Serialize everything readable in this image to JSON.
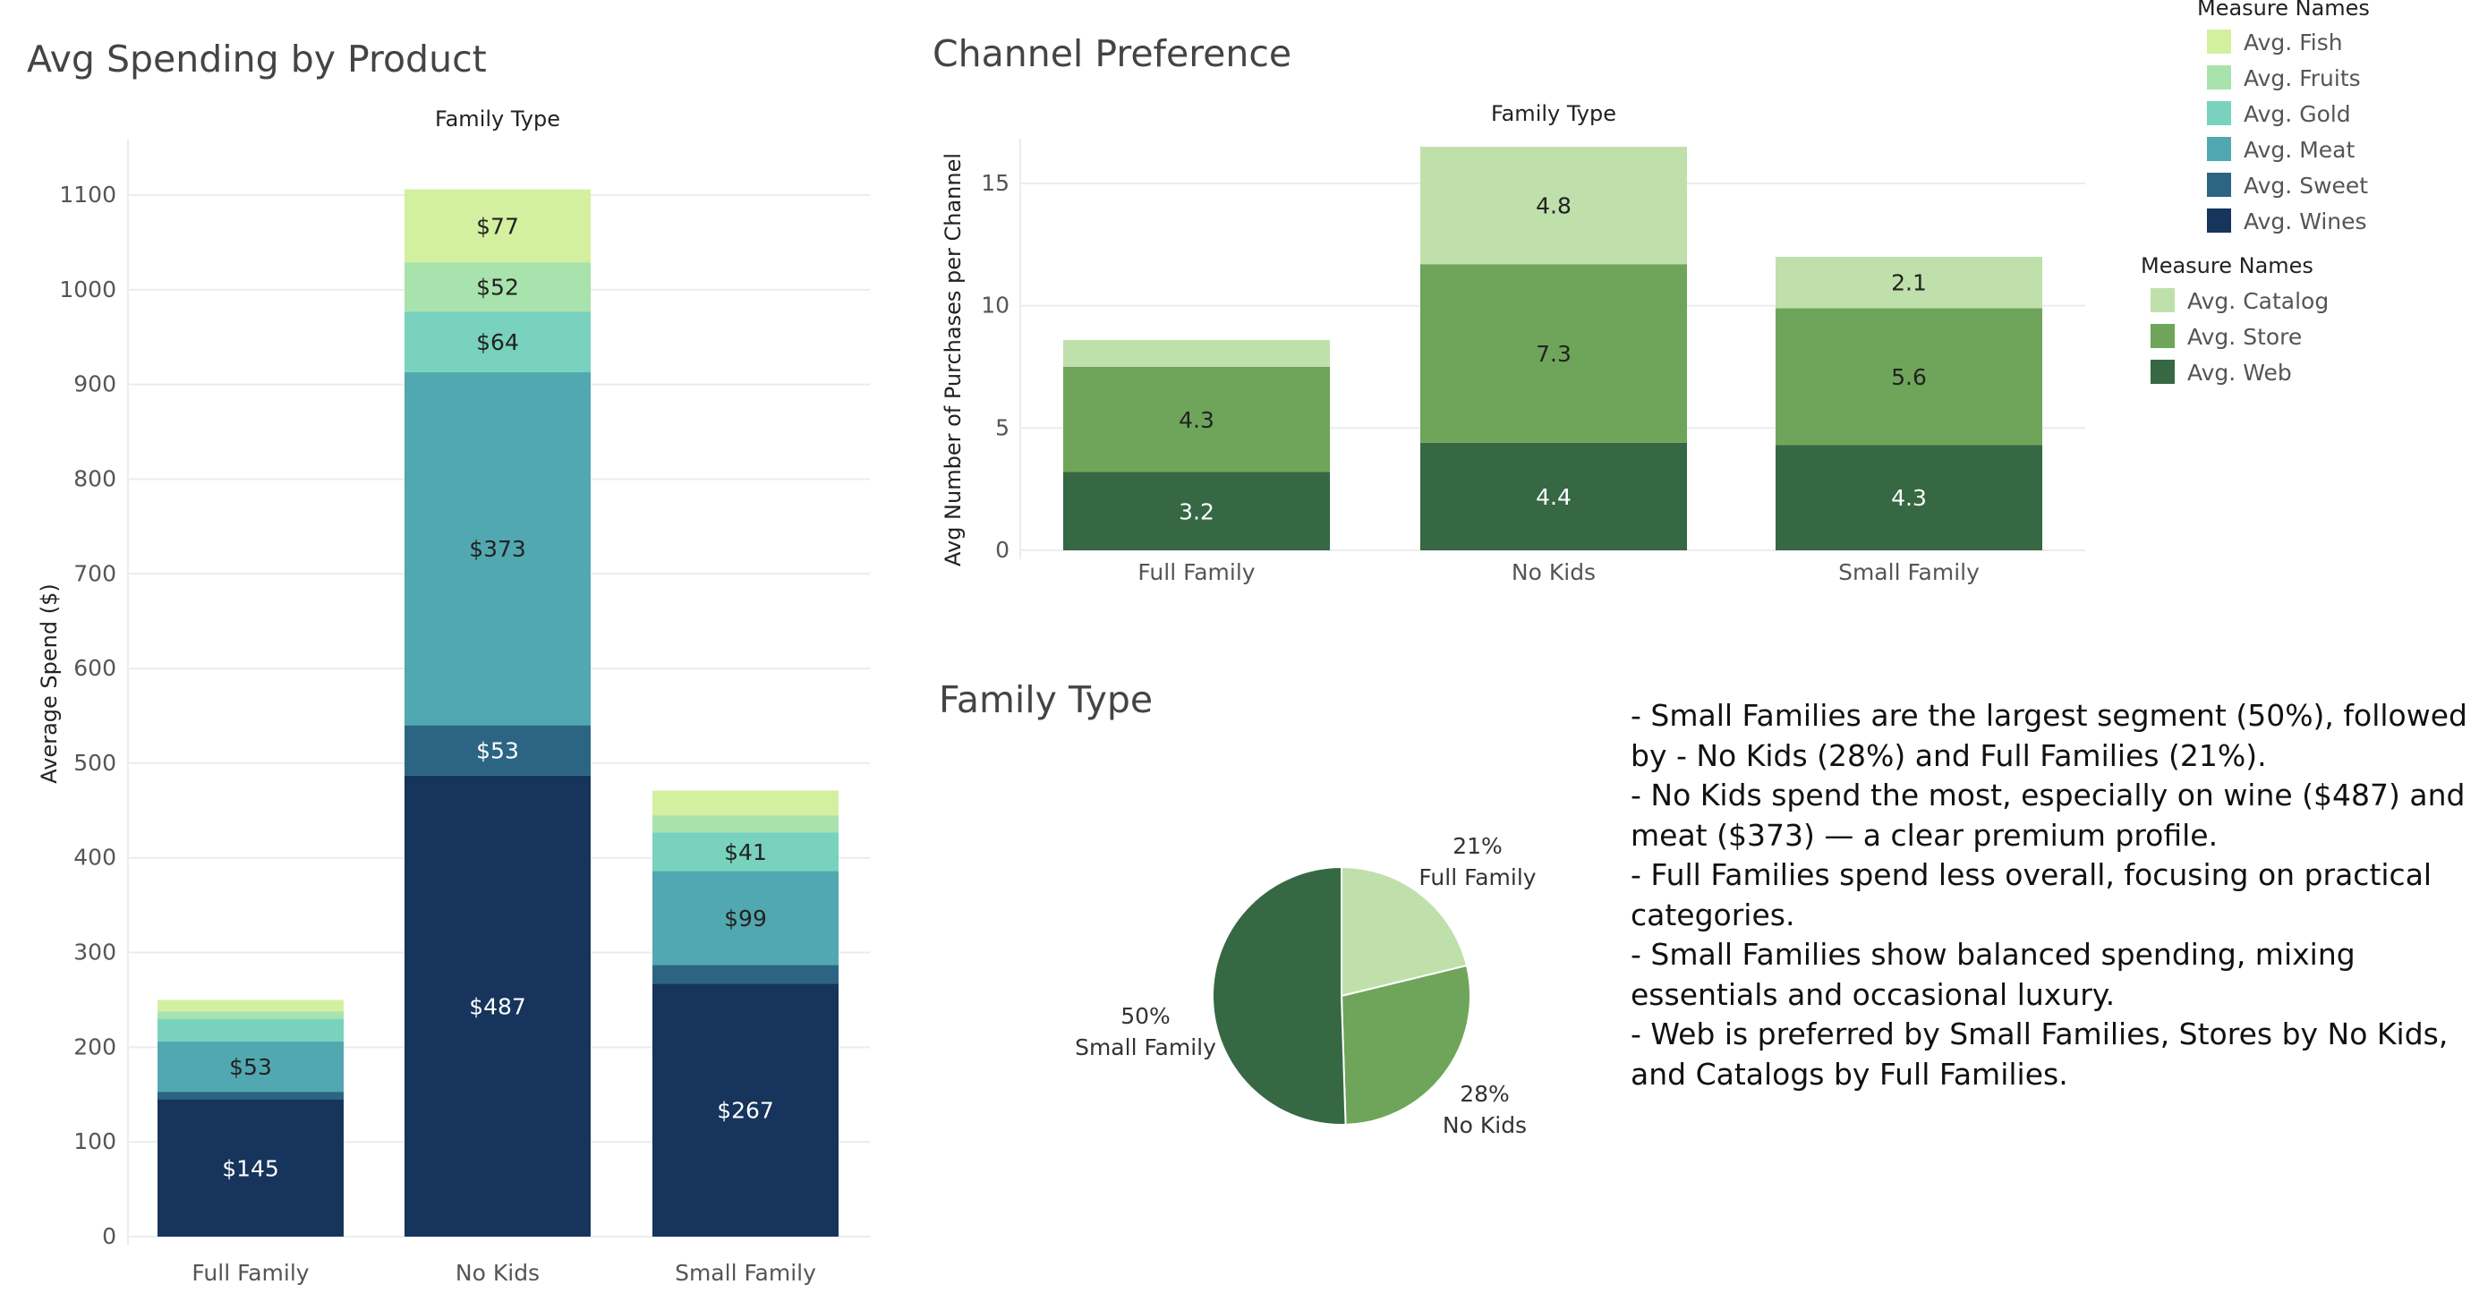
{
  "dashboard": {
    "spending_title": "Avg Spending by Product",
    "channel_title": "Channel Preference",
    "pie_title": "Family Type",
    "notes": [
      "- Small Families are the largest segment (50%), followed by - No Kids (28%) and Full Families (21%).",
      "- No Kids spend the most, especially on wine ($487) and meat ($373) — a clear premium profile.",
      "- Full Families spend less overall, focusing on practical categories.",
      "- Small Families show balanced spending, mixing essentials and occasional luxury.",
      "- Web is preferred by Small Families, Stores by No Kids, and Catalogs by Full Families."
    ]
  },
  "legend_products": {
    "title": "Measure Names",
    "items": [
      {
        "label": "Avg. Fish",
        "color": "#d3f0a0"
      },
      {
        "label": "Avg. Fruits",
        "color": "#a8e3ad"
      },
      {
        "label": "Avg. Gold",
        "color": "#78d2bd"
      },
      {
        "label": "Avg. Meat",
        "color": "#52a8b0"
      },
      {
        "label": "Avg. Sweet",
        "color": "#2c6584"
      },
      {
        "label": "Avg. Wines",
        "color": "#16345c"
      }
    ]
  },
  "legend_channels": {
    "title": "Measure Names",
    "items": [
      {
        "label": "Avg. Catalog",
        "color": "#bfe0ab"
      },
      {
        "label": "Avg. Store",
        "color": "#6ea55a"
      },
      {
        "label": "Avg. Web",
        "color": "#356843"
      }
    ]
  },
  "chart_data": [
    {
      "type": "bar",
      "stacked": true,
      "title": "Avg Spending by Product",
      "xlabel": "Family Type",
      "ylabel": "Average Spend ($)",
      "ylim": [
        0,
        1100
      ],
      "yticks": [
        0,
        100,
        200,
        300,
        400,
        500,
        600,
        700,
        800,
        900,
        1000,
        1100
      ],
      "categories": [
        "Full Family",
        "No Kids",
        "Small Family"
      ],
      "series": [
        {
          "name": "Avg. Wines",
          "color": "#16345c",
          "values": [
            145,
            487,
            267
          ],
          "labels": [
            "$145",
            "$487",
            "$267"
          ]
        },
        {
          "name": "Avg. Sweet",
          "color": "#2c6584",
          "values": [
            8,
            53,
            20
          ],
          "labels": [
            "",
            "$53",
            ""
          ]
        },
        {
          "name": "Avg. Meat",
          "color": "#52a8b0",
          "values": [
            53,
            373,
            99
          ],
          "labels": [
            "$53",
            "$373",
            "$99"
          ]
        },
        {
          "name": "Avg. Gold",
          "color": "#78d2bd",
          "values": [
            24,
            64,
            41
          ],
          "labels": [
            "",
            "$64",
            "$41"
          ]
        },
        {
          "name": "Avg. Fruits",
          "color": "#a8e3ad",
          "values": [
            8,
            52,
            18
          ],
          "labels": [
            "",
            "$52",
            ""
          ]
        },
        {
          "name": "Avg. Fish",
          "color": "#d3f0a0",
          "values": [
            12,
            77,
            26
          ],
          "labels": [
            "",
            "$77",
            ""
          ]
        }
      ],
      "grid": true,
      "legend": "top-right"
    },
    {
      "type": "bar",
      "stacked": true,
      "title": "Channel Preference",
      "xlabel": "Family Type",
      "ylabel": "Avg Number of Purchases per Channel",
      "ylim": [
        0,
        16.5
      ],
      "yticks": [
        0,
        5,
        10,
        15
      ],
      "categories": [
        "Full Family",
        "No Kids",
        "Small Family"
      ],
      "series": [
        {
          "name": "Avg. Web",
          "color": "#356843",
          "values": [
            3.2,
            4.4,
            4.3
          ],
          "labels": [
            "3.2",
            "4.4",
            "4.3"
          ]
        },
        {
          "name": "Avg. Store",
          "color": "#6ea55a",
          "values": [
            4.3,
            7.3,
            5.6
          ],
          "labels": [
            "4.3",
            "7.3",
            "5.6"
          ]
        },
        {
          "name": "Avg. Catalog",
          "color": "#bfe0ab",
          "values": [
            1.1,
            4.8,
            2.1
          ],
          "labels": [
            "",
            "4.8",
            "2.1"
          ]
        }
      ],
      "grid": true,
      "legend": "top-right"
    },
    {
      "type": "pie",
      "title": "Family Type",
      "slices": [
        {
          "label": "Full Family",
          "value": 21,
          "display": "21%",
          "color": "#bfe0ab"
        },
        {
          "label": "No Kids",
          "value": 28,
          "display": "28%",
          "color": "#6ea55a"
        },
        {
          "label": "Small Family",
          "value": 50,
          "display": "50%",
          "color": "#356843"
        }
      ]
    }
  ]
}
